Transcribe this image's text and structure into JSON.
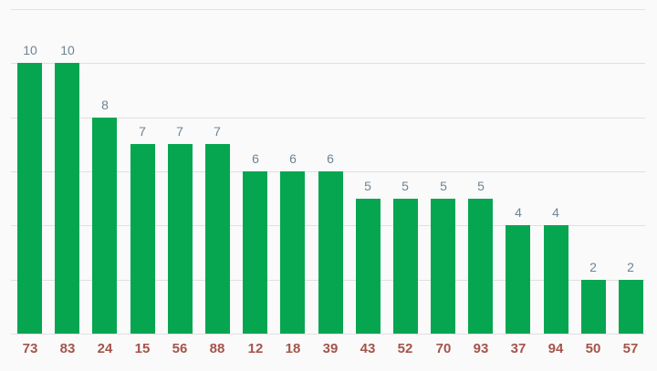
{
  "chart_data": {
    "type": "bar",
    "title": "",
    "xlabel": "",
    "ylabel": "",
    "categories": [
      "73",
      "83",
      "24",
      "15",
      "56",
      "88",
      "12",
      "18",
      "39",
      "43",
      "52",
      "70",
      "93",
      "37",
      "94",
      "50",
      "57"
    ],
    "values": [
      10,
      10,
      8,
      7,
      7,
      7,
      6,
      6,
      6,
      5,
      5,
      5,
      5,
      4,
      4,
      2,
      2
    ],
    "ylim": [
      0,
      12
    ],
    "gridline_step": 2,
    "grid": true,
    "legend": "none",
    "y_axis_tick_labels_visible": false,
    "annotations_above_bars": true,
    "colors": {
      "background": "#fafafa",
      "bar": "#06a651",
      "gridline": "#e0e0e0",
      "annotation_text": "#6d8493",
      "category_text": "#a5544a"
    }
  }
}
